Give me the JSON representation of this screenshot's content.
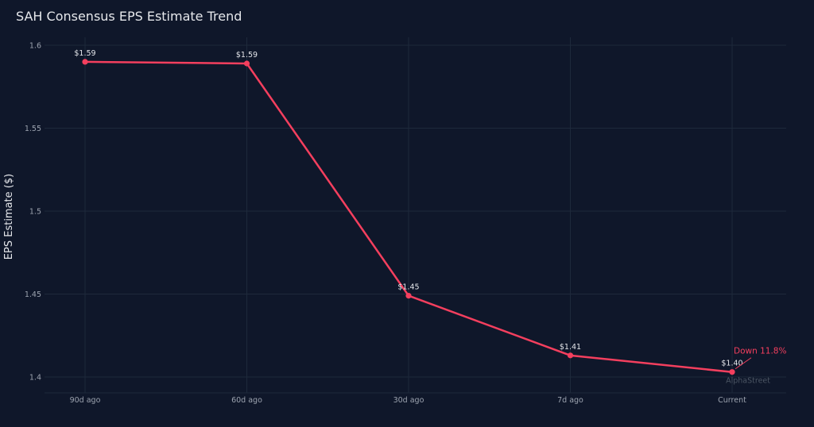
{
  "chart_data": {
    "type": "line",
    "title": "SAH Consensus EPS Estimate Trend",
    "xlabel": "",
    "ylabel": "EPS Estimate ($)",
    "categories": [
      "90d ago",
      "60d ago",
      "30d ago",
      "7d ago",
      "Current"
    ],
    "series": [
      {
        "values": [
          1.59,
          1.589,
          1.449,
          1.413,
          1.403
        ],
        "data_labels": [
          "$1.59",
          "$1.59",
          "$1.45",
          "$1.41",
          "$1.40"
        ]
      }
    ],
    "ylim": [
      1.39,
      1.605
    ],
    "yticks": [
      1.4,
      1.45,
      1.5,
      1.55,
      1.6
    ],
    "ytick_labels": [
      "1.4",
      "1.45",
      "1.5",
      "1.55",
      "1.6"
    ],
    "grid": true,
    "annotation": {
      "text": "Down 11.8%",
      "category": "Current"
    },
    "watermark": "AlphaStreet"
  },
  "colors": {
    "background": "#0f172a",
    "line": "#f43f5e",
    "grid": "#1e293b"
  }
}
